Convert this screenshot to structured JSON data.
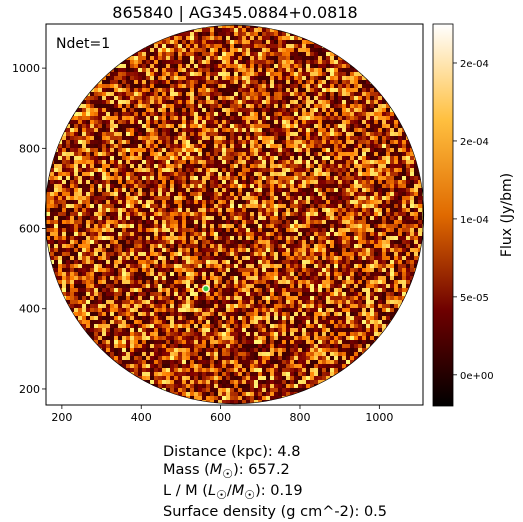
{
  "title": "865840 | AG345.0884+0.0818",
  "annotation": "Ndet=1",
  "colorbar": {
    "label": "Flux (Jy/bm)",
    "ticks": [
      {
        "value": 0.0,
        "label": "0e+00"
      },
      {
        "value": 5e-05,
        "label": "5e-05"
      },
      {
        "value": 0.0001,
        "label": "1e-04"
      },
      {
        "value": 0.00015,
        "label": "2e-04"
      },
      {
        "value": 0.0002,
        "label": "2e-04"
      }
    ],
    "vmin": -2e-05,
    "vmax": 0.000225,
    "colormap": "afmhot"
  },
  "chart_data": {
    "type": "heatmap",
    "xlim": [
      160,
      1110
    ],
    "ylim": [
      160,
      1110
    ],
    "x_ticks": [
      200,
      400,
      600,
      800,
      1000
    ],
    "y_ticks": [
      200,
      400,
      600,
      800,
      1000
    ],
    "circle": {
      "center": [
        635,
        635
      ],
      "radius": 477
    },
    "detection": {
      "x": 563,
      "y": 450,
      "color": "#2ecc40"
    }
  },
  "info": {
    "distance": "Distance (kpc): 4.8",
    "mass_prefix": "Mass (",
    "mass_suffix": "): 657.2",
    "lm_prefix": "L / M (",
    "lm_suffix": "): 0.19",
    "surface_density": "Surface density (g cm^-2): 0.5"
  }
}
